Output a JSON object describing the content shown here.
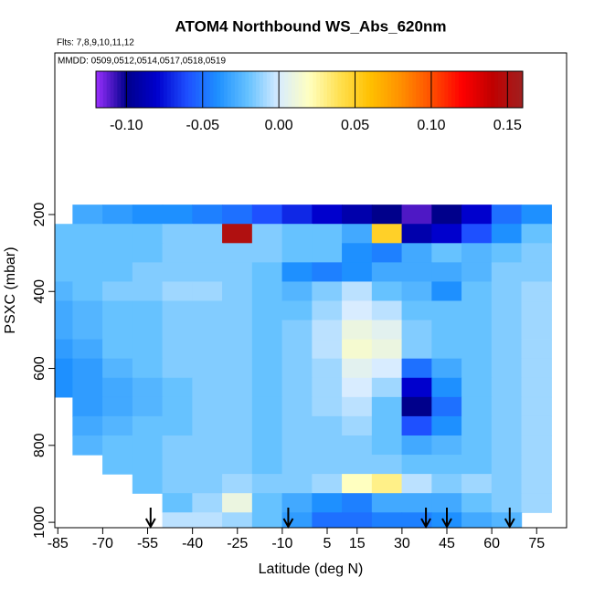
{
  "chart_data": {
    "type": "heatmap",
    "title": "ATOM4 Northbound WS_Abs_620nm",
    "subtitle": "Flts: 7,8,9,10,11,12",
    "annotation": "MMDD: 0509,0512,0514,0517,0518,0519",
    "x_label": "Latitude (deg N)",
    "y_label": "PSXC (mbar)",
    "xlim": [
      -86,
      85
    ],
    "ylim": [
      -220,
      1014
    ],
    "xticks": [
      -85,
      -70,
      -55,
      -40,
      -25,
      -10,
      5,
      15,
      30,
      45,
      60,
      75
    ],
    "yticks": [
      200,
      400,
      600,
      800,
      1000
    ],
    "x_edges": [
      -90,
      -80,
      -70,
      -60,
      -50,
      -40,
      -30,
      -20,
      -10,
      0,
      10,
      20,
      30,
      40,
      50,
      60,
      70,
      80
    ],
    "y_edges": [
      175,
      225,
      275,
      325,
      375,
      425,
      475,
      525,
      575,
      625,
      675,
      725,
      775,
      825,
      875,
      925,
      975,
      1025
    ],
    "z": [
      [
        null,
        -0.03,
        -0.035,
        -0.04,
        -0.04,
        -0.045,
        -0.05,
        -0.06,
        -0.07,
        -0.08,
        -0.09,
        -0.1,
        -0.11,
        -0.1,
        -0.08,
        -0.05,
        -0.04
      ],
      [
        -0.02,
        -0.02,
        -0.02,
        -0.02,
        -0.015,
        -0.015,
        0.15,
        -0.015,
        -0.02,
        -0.02,
        -0.03,
        0.05,
        -0.09,
        -0.08,
        -0.06,
        -0.04,
        -0.02
      ],
      [
        -0.02,
        -0.02,
        -0.02,
        -0.02,
        -0.015,
        -0.015,
        -0.015,
        -0.015,
        -0.02,
        -0.02,
        -0.04,
        -0.045,
        -0.03,
        -0.02,
        -0.025,
        -0.02,
        -0.015
      ],
      [
        -0.02,
        -0.02,
        -0.02,
        -0.015,
        -0.015,
        -0.015,
        -0.015,
        -0.02,
        -0.04,
        -0.045,
        -0.04,
        -0.03,
        -0.03,
        -0.03,
        -0.025,
        -0.015,
        -0.015
      ],
      [
        -0.025,
        -0.02,
        -0.015,
        -0.015,
        -0.01,
        -0.01,
        -0.015,
        -0.02,
        -0.025,
        -0.015,
        -0.005,
        -0.02,
        -0.025,
        -0.04,
        -0.02,
        -0.015,
        -0.01
      ],
      [
        -0.03,
        -0.025,
        -0.02,
        -0.02,
        -0.015,
        -0.015,
        -0.015,
        -0.02,
        -0.02,
        -0.01,
        0.0,
        -0.005,
        -0.02,
        -0.02,
        -0.02,
        -0.015,
        -0.01
      ],
      [
        -0.03,
        -0.025,
        -0.02,
        -0.02,
        -0.015,
        -0.015,
        -0.015,
        -0.02,
        -0.015,
        -0.005,
        0.01,
        0.005,
        -0.015,
        -0.02,
        -0.02,
        -0.015,
        -0.01
      ],
      [
        -0.035,
        -0.03,
        -0.02,
        -0.02,
        -0.015,
        -0.015,
        -0.015,
        -0.02,
        -0.015,
        -0.005,
        0.015,
        0.01,
        -0.015,
        -0.02,
        -0.02,
        -0.015,
        -0.01
      ],
      [
        -0.04,
        -0.035,
        -0.025,
        -0.02,
        -0.015,
        -0.015,
        -0.015,
        -0.02,
        -0.015,
        -0.01,
        0.005,
        0.0,
        -0.05,
        -0.03,
        -0.02,
        -0.015,
        -0.01
      ],
      [
        -0.04,
        -0.035,
        -0.03,
        -0.025,
        -0.02,
        -0.015,
        -0.015,
        -0.02,
        -0.015,
        -0.01,
        0.0,
        -0.01,
        -0.08,
        -0.04,
        -0.02,
        -0.015,
        -0.01
      ],
      [
        null,
        -0.035,
        -0.03,
        -0.025,
        -0.02,
        -0.015,
        -0.015,
        -0.02,
        -0.015,
        -0.01,
        -0.005,
        -0.02,
        -0.1,
        -0.05,
        -0.02,
        -0.015,
        -0.01
      ],
      [
        null,
        -0.03,
        -0.025,
        -0.02,
        -0.02,
        -0.015,
        -0.015,
        -0.02,
        -0.015,
        -0.015,
        -0.01,
        -0.02,
        -0.06,
        -0.04,
        -0.02,
        -0.015,
        -0.01
      ],
      [
        null,
        -0.025,
        -0.02,
        -0.02,
        -0.015,
        -0.015,
        -0.015,
        -0.02,
        -0.015,
        -0.015,
        -0.015,
        -0.02,
        -0.03,
        -0.025,
        -0.02,
        -0.015,
        -0.01
      ],
      [
        null,
        null,
        -0.02,
        -0.02,
        -0.015,
        -0.015,
        -0.015,
        -0.02,
        -0.015,
        -0.015,
        -0.015,
        -0.015,
        -0.02,
        -0.02,
        -0.02,
        -0.015,
        -0.01
      ],
      [
        null,
        null,
        null,
        -0.02,
        -0.015,
        -0.015,
        -0.01,
        -0.015,
        -0.015,
        -0.01,
        0.02,
        0.03,
        -0.005,
        -0.015,
        -0.01,
        -0.015,
        -0.01
      ],
      [
        null,
        null,
        null,
        null,
        -0.02,
        -0.01,
        0.01,
        -0.02,
        -0.03,
        -0.04,
        -0.045,
        -0.03,
        -0.03,
        -0.03,
        -0.02,
        -0.015,
        -0.01
      ],
      [
        null,
        null,
        null,
        null,
        -0.005,
        -0.005,
        -0.01,
        -0.02,
        -0.035,
        -0.05,
        -0.05,
        -0.045,
        -0.045,
        -0.04,
        -0.03,
        -0.025,
        null
      ]
    ],
    "zlim": [
      -0.12,
      0.16
    ],
    "colors": [
      "#9b30ff",
      "#00008b",
      "#0000cd",
      "#1e50ff",
      "#1e90ff",
      "#66c2ff",
      "#d8ecff",
      "#ffffc0",
      "#ffe050",
      "#ffc000",
      "#ff9000",
      "#ff5000",
      "#ff0000",
      "#c00000",
      "#a02020"
    ],
    "colorbar_ticks": [
      {
        "value": -0.1,
        "label": "-0.10"
      },
      {
        "value": -0.05,
        "label": "-0.05"
      },
      {
        "value": 0,
        "label": "0.00"
      },
      {
        "value": 0.05,
        "label": "0.05"
      },
      {
        "value": 0.1,
        "label": "0.10"
      },
      0.15
    ],
    "arrows": [
      -54,
      -8,
      38,
      45,
      66
    ]
  }
}
